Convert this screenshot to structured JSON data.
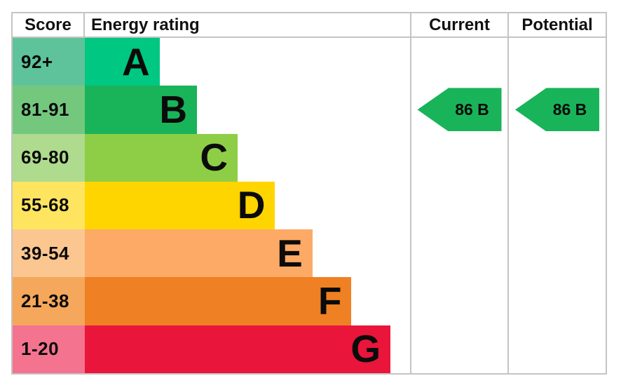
{
  "chart_data": {
    "type": "bar",
    "orientation": "horizontal",
    "title": "Energy rating",
    "columns": {
      "score": "Score",
      "energy_rating": "Energy rating",
      "current": "Current",
      "potential": "Potential"
    },
    "bands": [
      {
        "score_range": "92+",
        "letter": "A",
        "bar_width_pct": 23,
        "bar_color": "#00c781",
        "score_bg": "#5ec39a"
      },
      {
        "score_range": "81-91",
        "letter": "B",
        "bar_width_pct": 34.5,
        "bar_color": "#19b459",
        "score_bg": "#74c87e"
      },
      {
        "score_range": "69-80",
        "letter": "C",
        "bar_width_pct": 47,
        "bar_color": "#8dce46",
        "score_bg": "#aedb8d"
      },
      {
        "score_range": "55-68",
        "letter": "D",
        "bar_width_pct": 58.5,
        "bar_color": "#ffd500",
        "score_bg": "#ffe55f"
      },
      {
        "score_range": "39-54",
        "letter": "E",
        "bar_width_pct": 70,
        "bar_color": "#fcaa65",
        "score_bg": "#fcc690"
      },
      {
        "score_range": "21-38",
        "letter": "F",
        "bar_width_pct": 82,
        "bar_color": "#ef8023",
        "score_bg": "#f5a75b"
      },
      {
        "score_range": "1-20",
        "letter": "G",
        "bar_width_pct": 94,
        "bar_color": "#e9153b",
        "score_bg": "#f4738f"
      }
    ],
    "markers": {
      "current": {
        "label": "86 B",
        "value": 86,
        "band": "B",
        "arrow_color": "#19b459"
      },
      "potential": {
        "label": "86 B",
        "value": 86,
        "band": "B",
        "arrow_color": "#19b459"
      }
    }
  },
  "colors": {
    "border": "#c4c4c4",
    "background": "#ffffff",
    "text": "#0b0b0b"
  }
}
